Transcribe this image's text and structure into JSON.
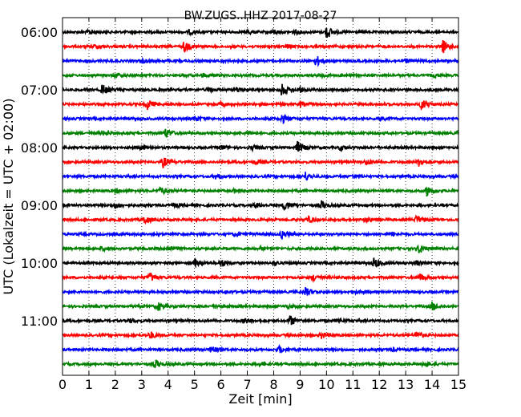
{
  "chart_data": {
    "type": "line",
    "title": "BW.ZUGS..HHZ 2017-08-27",
    "xlabel": "Zeit  [min]",
    "ylabel": "UTC (Lokalzeit = UTC + 02:00)",
    "xlim": [
      0,
      15
    ],
    "x_ticks": [
      "0",
      "1",
      "2",
      "3",
      "4",
      "5",
      "6",
      "7",
      "8",
      "9",
      "10",
      "11",
      "12",
      "13",
      "14",
      "15"
    ],
    "y_ticks": [
      "06:00",
      "07:00",
      "08:00",
      "09:00",
      "10:00",
      "11:00"
    ],
    "grid": "vertical dotted at each minute",
    "trace_colors": [
      "#000000",
      "#ff0000",
      "#0000ff",
      "#008000"
    ],
    "traces": [
      {
        "start": "06:00",
        "color": "#000000",
        "events": [
          [
            1.0,
            0.4
          ],
          [
            4.8,
            0.3
          ],
          [
            7.0,
            0.35
          ],
          [
            8.0,
            0.3
          ],
          [
            8.8,
            0.3
          ],
          [
            10.0,
            1.0
          ]
        ]
      },
      {
        "start": "06:15",
        "color": "#ff0000",
        "events": [
          [
            1.2,
            0.3
          ],
          [
            4.6,
            0.8
          ],
          [
            8.5,
            0.3
          ],
          [
            14.4,
            1.0
          ]
        ]
      },
      {
        "start": "06:30",
        "color": "#0000ff",
        "events": [
          [
            3.0,
            0.25
          ],
          [
            9.6,
            0.8
          ],
          [
            13.0,
            0.25
          ]
        ]
      },
      {
        "start": "06:45",
        "color": "#008000",
        "events": [
          [
            2.0,
            0.3
          ],
          [
            5.3,
            0.3
          ],
          [
            9.8,
            0.3
          ],
          [
            14.0,
            0.25
          ]
        ]
      },
      {
        "start": "07:00",
        "color": "#000000",
        "events": [
          [
            1.5,
            0.8
          ],
          [
            5.5,
            0.35
          ],
          [
            6.6,
            0.4
          ],
          [
            8.3,
            0.9
          ],
          [
            9.0,
            0.3
          ]
        ]
      },
      {
        "start": "07:15",
        "color": "#ff0000",
        "events": [
          [
            3.2,
            0.8
          ],
          [
            6.0,
            0.3
          ],
          [
            9.0,
            0.4
          ],
          [
            13.6,
            0.8
          ]
        ]
      },
      {
        "start": "07:30",
        "color": "#0000ff",
        "events": [
          [
            5.0,
            0.4
          ],
          [
            8.3,
            0.7
          ],
          [
            12.0,
            0.25
          ]
        ]
      },
      {
        "start": "07:45",
        "color": "#008000",
        "events": [
          [
            1.5,
            0.3
          ],
          [
            3.9,
            0.7
          ],
          [
            7.0,
            0.3
          ],
          [
            15.0,
            0.6
          ]
        ]
      },
      {
        "start": "08:00",
        "color": "#000000",
        "events": [
          [
            3.0,
            0.3
          ],
          [
            6.0,
            0.35
          ],
          [
            7.2,
            0.3
          ],
          [
            8.9,
            0.9
          ],
          [
            10.5,
            0.3
          ]
        ]
      },
      {
        "start": "08:15",
        "color": "#ff0000",
        "events": [
          [
            3.8,
            0.8
          ],
          [
            7.3,
            0.35
          ],
          [
            11.5,
            0.5
          ],
          [
            13.5,
            0.6
          ]
        ]
      },
      {
        "start": "08:30",
        "color": "#0000ff",
        "events": [
          [
            5.8,
            0.3
          ],
          [
            9.2,
            0.6
          ],
          [
            11.0,
            0.25
          ]
        ]
      },
      {
        "start": "08:45",
        "color": "#008000",
        "events": [
          [
            2.0,
            0.25
          ],
          [
            3.7,
            0.6
          ],
          [
            6.5,
            0.25
          ],
          [
            13.8,
            0.7
          ]
        ]
      },
      {
        "start": "09:00",
        "color": "#000000",
        "events": [
          [
            2.0,
            0.3
          ],
          [
            4.2,
            0.3
          ],
          [
            7.3,
            0.35
          ],
          [
            8.4,
            0.8
          ],
          [
            9.8,
            0.6
          ]
        ]
      },
      {
        "start": "09:15",
        "color": "#ff0000",
        "events": [
          [
            3.1,
            0.7
          ],
          [
            9.3,
            0.45
          ],
          [
            11.5,
            0.3
          ],
          [
            13.4,
            0.6
          ]
        ]
      },
      {
        "start": "09:30",
        "color": "#0000ff",
        "events": [
          [
            6.5,
            0.25
          ],
          [
            8.3,
            0.7
          ],
          [
            12.5,
            0.25
          ]
        ]
      },
      {
        "start": "09:45",
        "color": "#008000",
        "events": [
          [
            1.5,
            0.3
          ],
          [
            4.0,
            0.4
          ],
          [
            7.5,
            0.25
          ],
          [
            13.5,
            0.7
          ]
        ]
      },
      {
        "start": "10:00",
        "color": "#000000",
        "events": [
          [
            5.0,
            0.45
          ],
          [
            6.0,
            0.6
          ],
          [
            8.0,
            0.3
          ],
          [
            11.8,
            0.8
          ],
          [
            13.4,
            0.3
          ]
        ]
      },
      {
        "start": "10:15",
        "color": "#ff0000",
        "events": [
          [
            3.3,
            0.7
          ],
          [
            9.5,
            0.5
          ],
          [
            13.5,
            0.6
          ]
        ]
      },
      {
        "start": "10:30",
        "color": "#0000ff",
        "events": [
          [
            6.2,
            0.25
          ],
          [
            9.2,
            0.6
          ],
          [
            11.0,
            0.25
          ]
        ]
      },
      {
        "start": "10:45",
        "color": "#008000",
        "events": [
          [
            3.6,
            0.6
          ],
          [
            5.8,
            0.3
          ],
          [
            8.5,
            0.25
          ],
          [
            14.0,
            0.6
          ]
        ]
      },
      {
        "start": "11:00",
        "color": "#000000",
        "events": [
          [
            2.5,
            0.3
          ],
          [
            6.9,
            0.4
          ],
          [
            8.6,
            0.8
          ],
          [
            10.4,
            0.3
          ]
        ]
      },
      {
        "start": "11:15",
        "color": "#ff0000",
        "events": [
          [
            3.3,
            0.6
          ],
          [
            9.8,
            0.5
          ],
          [
            13.4,
            0.6
          ]
        ]
      },
      {
        "start": "11:30",
        "color": "#0000ff",
        "events": [
          [
            5.6,
            0.6
          ],
          [
            8.2,
            0.5
          ],
          [
            12.5,
            0.2
          ]
        ]
      },
      {
        "start": "11:45",
        "color": "#008000",
        "events": [
          [
            3.5,
            0.6
          ],
          [
            7.5,
            0.25
          ],
          [
            13.7,
            0.5
          ]
        ]
      }
    ]
  }
}
